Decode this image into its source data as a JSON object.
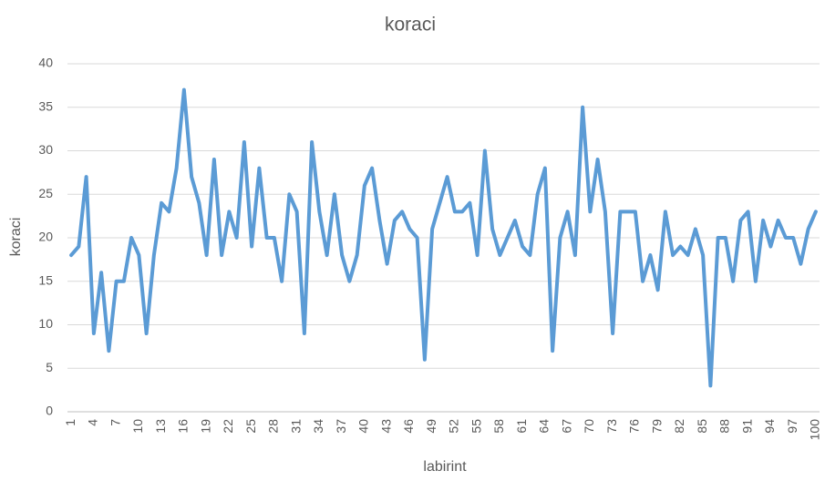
{
  "chart_data": {
    "type": "line",
    "title": "koraci",
    "x_label": "labirint",
    "y_label": "koraci",
    "categories": [
      1,
      null,
      null,
      4,
      null,
      null,
      7,
      null,
      null,
      10,
      null,
      null,
      13,
      null,
      null,
      16,
      null,
      null,
      19,
      null,
      null,
      22,
      null,
      null,
      25,
      null,
      null,
      28,
      null,
      null,
      31,
      null,
      null,
      34,
      null,
      null,
      37,
      null,
      null,
      40,
      null,
      null,
      43,
      null,
      null,
      46,
      null,
      null,
      49,
      null,
      null,
      52,
      null,
      null,
      55,
      null,
      null,
      58,
      null,
      null,
      61,
      null,
      null,
      64,
      null,
      null,
      67,
      null,
      null,
      70,
      null,
      null,
      73,
      null,
      null,
      76,
      null,
      null,
      79,
      null,
      null,
      82,
      null,
      null,
      85,
      null,
      null,
      88,
      null,
      null,
      91,
      null,
      null,
      94,
      null,
      null,
      97,
      null,
      null,
      100
    ],
    "series": [
      {
        "name": "koraci",
        "color": "#5b9bd5",
        "values": [
          18,
          19,
          27,
          9,
          16,
          7,
          15,
          15,
          20,
          18,
          9,
          18,
          24,
          23,
          28,
          37,
          27,
          24,
          18,
          29,
          18,
          23,
          20,
          31,
          19,
          28,
          20,
          20,
          15,
          25,
          23,
          9,
          31,
          23,
          18,
          25,
          18,
          15,
          18,
          26,
          28,
          22,
          17,
          22,
          23,
          21,
          20,
          6,
          21,
          24,
          27,
          23,
          23,
          24,
          18,
          30,
          21,
          18,
          20,
          22,
          19,
          18,
          25,
          28,
          7,
          20,
          23,
          18,
          35,
          23,
          29,
          23,
          9,
          23,
          23,
          23,
          15,
          18,
          14,
          23,
          18,
          19,
          18,
          21,
          18,
          3,
          20,
          20,
          15,
          22,
          23,
          15,
          22,
          19,
          22,
          20,
          20,
          17,
          21,
          23
        ]
      }
    ],
    "ylim": [
      0,
      40
    ],
    "yticks": [
      0,
      5,
      10,
      15,
      20,
      25,
      30,
      35,
      40
    ],
    "grid": true
  }
}
